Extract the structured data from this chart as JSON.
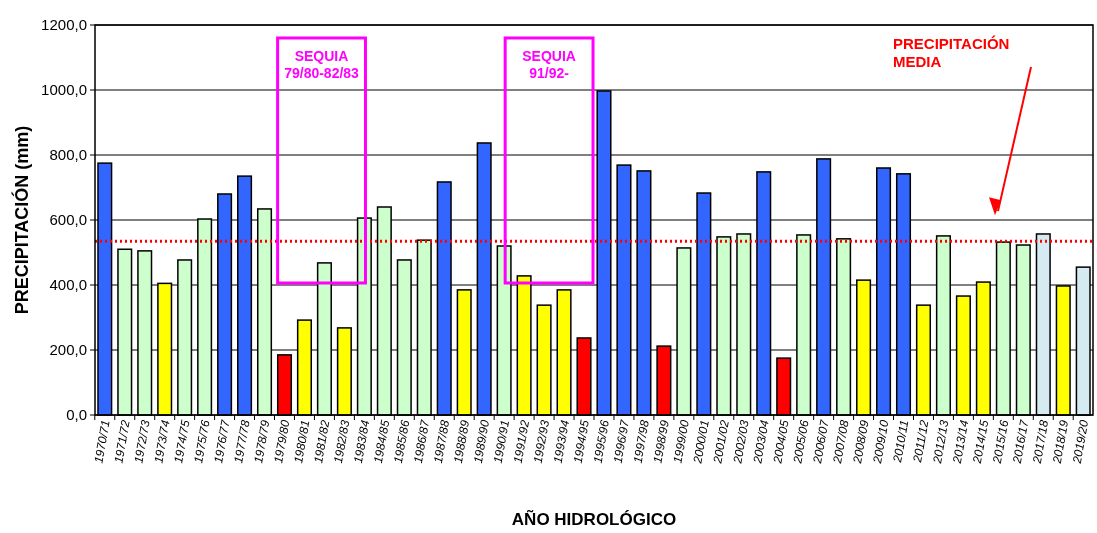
{
  "chart_data": {
    "type": "bar",
    "xlabel": "AÑO HIDROLÓGICO",
    "ylabel": "PRECIPITACIÓN (mm)",
    "categories": [
      "1970/71",
      "1971/72",
      "1972/73",
      "1973/74",
      "1974/75",
      "1975/76",
      "1976/77",
      "1977/78",
      "1978/79",
      "1979/80",
      "1980/81",
      "1981/82",
      "1982/83",
      "1983/84",
      "1984/85",
      "1985/86",
      "1986/87",
      "1987/88",
      "1988/89",
      "1989/90",
      "1990/91",
      "1991/92",
      "1992/93",
      "1993/94",
      "1994/95",
      "1995/96",
      "1996/97",
      "1997/98",
      "1998/99",
      "1999/00",
      "2000/01",
      "2001/02",
      "2002/03",
      "2003/04",
      "2004/05",
      "2005/06",
      "2006/07",
      "2007/08",
      "2008/09",
      "2009/10",
      "2010/11",
      "2011/12",
      "2012/13",
      "2013/14",
      "2014/15",
      "2015/16",
      "2016/17",
      "2017/18",
      "2018/19",
      "2019/20"
    ],
    "values": [
      775,
      510,
      505,
      405,
      477,
      603,
      680,
      735,
      634,
      185,
      292,
      468,
      268,
      606,
      640,
      477,
      538,
      717,
      385,
      837,
      520,
      428,
      338,
      385,
      237,
      997,
      769,
      751,
      212,
      514,
      683,
      548,
      557,
      748,
      175,
      554,
      788,
      542,
      415,
      760,
      742,
      338,
      551,
      366,
      409,
      532,
      523,
      557,
      397,
      455
    ],
    "colors": [
      "#3366ff",
      "#ccffcc",
      "#ccffcc",
      "#ffff00",
      "#ccffcc",
      "#ccffcc",
      "#3366ff",
      "#3366ff",
      "#ccffcc",
      "#ff0000",
      "#ffff00",
      "#ccffcc",
      "#ffff00",
      "#ccffcc",
      "#ccffcc",
      "#ccffcc",
      "#ccffcc",
      "#3366ff",
      "#ffff00",
      "#3366ff",
      "#ccffcc",
      "#ffff00",
      "#ffff00",
      "#ffff00",
      "#ff0000",
      "#3366ff",
      "#3366ff",
      "#3366ff",
      "#ff0000",
      "#ccffcc",
      "#3366ff",
      "#ccffcc",
      "#ccffcc",
      "#3366ff",
      "#ff0000",
      "#ccffcc",
      "#3366ff",
      "#ccffcc",
      "#ffff00",
      "#3366ff",
      "#3366ff",
      "#ffff00",
      "#ccffcc",
      "#ffff00",
      "#ffff00",
      "#ccffcc",
      "#ccffcc",
      "#d6eaf2",
      "#ffff00",
      "#d6eaf2"
    ],
    "ylim": [
      0,
      1200
    ],
    "yticks": [
      {
        "value": 0,
        "label": "0,0"
      },
      {
        "value": 200,
        "label": "200,0"
      },
      {
        "value": 400,
        "label": "400,0"
      },
      {
        "value": 600,
        "label": "600,0"
      },
      {
        "value": 800,
        "label": "800,0"
      },
      {
        "value": 1000,
        "label": "1000,0"
      },
      {
        "value": 1200,
        "label": "1200,0"
      }
    ],
    "grid": "y",
    "ref_lines": [
      {
        "axis": "y",
        "value": 535,
        "label": "PRECIPITACIÓN\nMEDIA",
        "color": "#ff0000",
        "line_style": "dotted"
      }
    ],
    "annotations": [
      "SEQUIA\n79/80-82/83",
      "SEQUIA\n91/92-"
    ]
  }
}
